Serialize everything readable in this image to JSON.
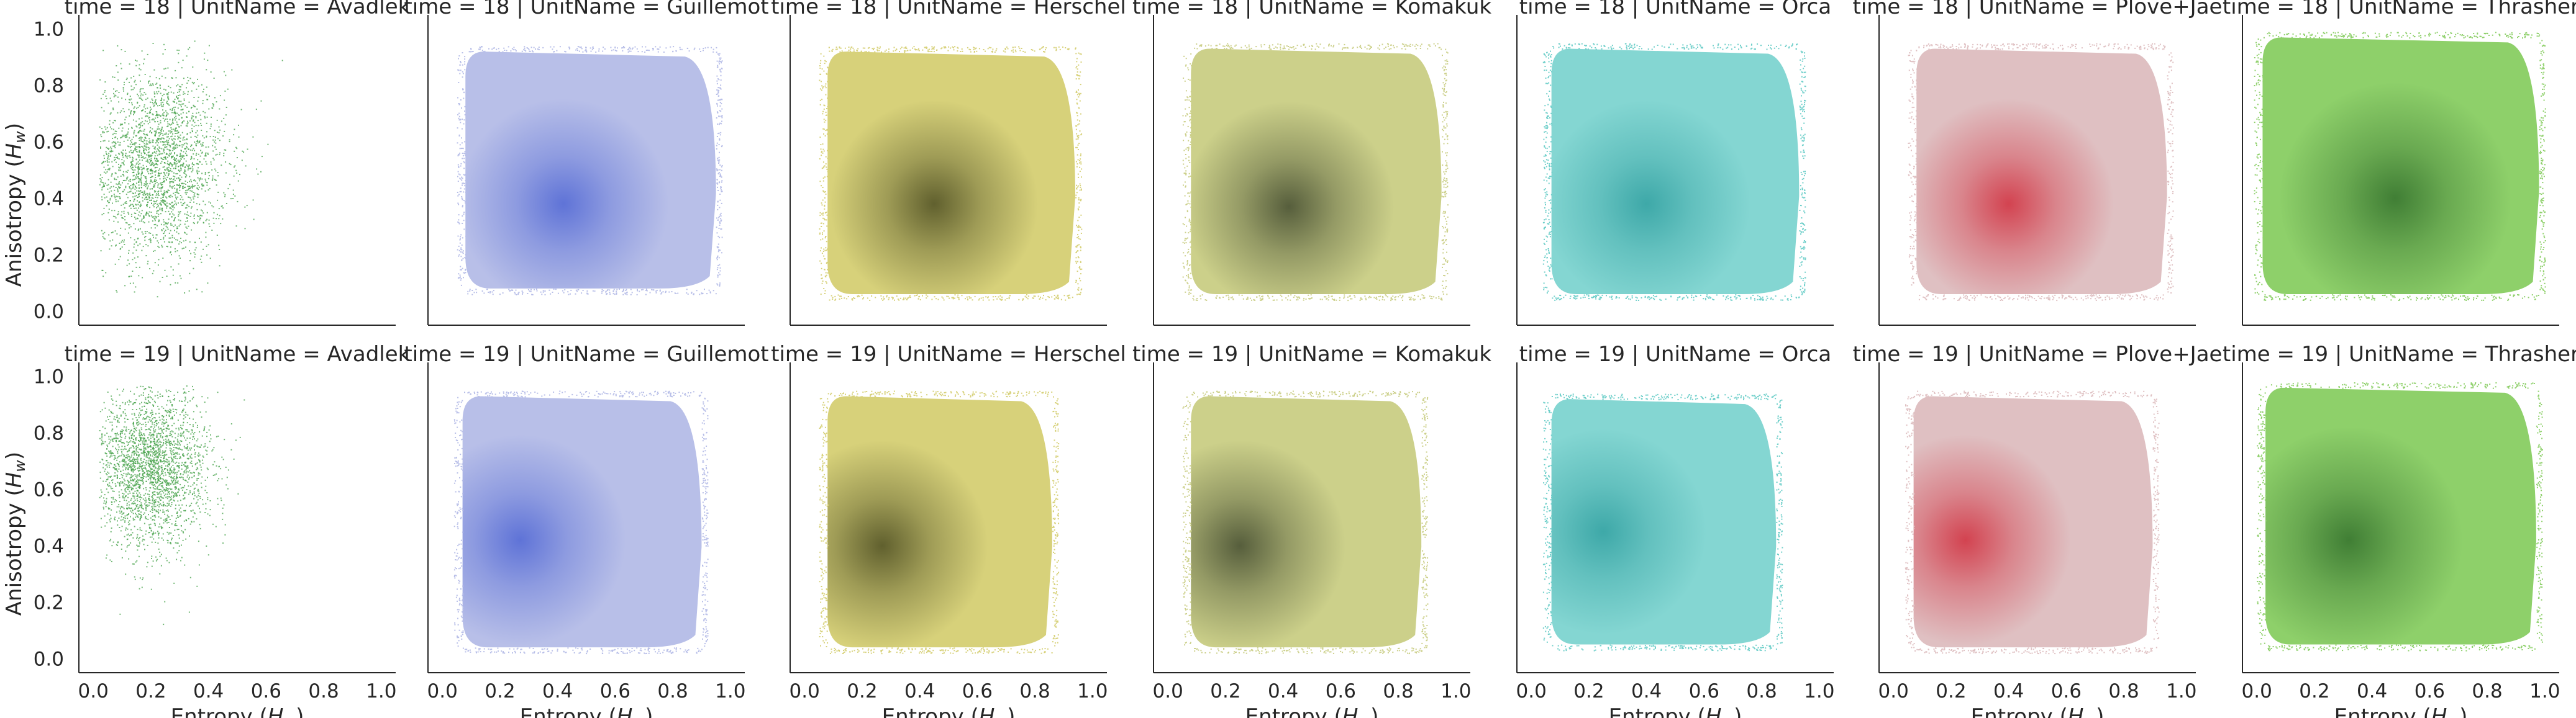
{
  "figure": {
    "x_label_text": "Entropy (",
    "x_label_sym": "H",
    "x_label_sub": "w",
    "x_label_close": ")",
    "y_label_text": "Anisotropy (",
    "y_label_sym": "H",
    "y_label_sub": "w",
    "y_label_close": ")"
  },
  "chart_data": [
    {
      "type": "scatter",
      "title": "time = 18 | UnitName = Avadlek",
      "row": 0,
      "col": 0,
      "color": "#43a047",
      "center": [
        0.22,
        0.52
      ],
      "spread": [
        0.12,
        0.17
      ],
      "density": "sparse",
      "xlim": [
        -0.05,
        1.05
      ],
      "ylim": [
        -0.05,
        1.05
      ],
      "xticks": [
        0.0,
        0.2,
        0.4,
        0.6,
        0.8,
        1.0
      ],
      "yticks": [
        0.0,
        0.2,
        0.4,
        0.6,
        0.8,
        1.0
      ],
      "xtick_labels": [
        "0.0",
        "0.2",
        "0.4",
        "0.6",
        "0.8",
        "1.0"
      ],
      "ytick_labels": [
        "0.0",
        "0.2",
        "0.4",
        "0.6",
        "0.8",
        "1.0"
      ]
    },
    {
      "type": "scatter",
      "title": "time = 18 | UnitName = Guillemot",
      "row": 0,
      "col": 1,
      "color": "#5a6fd6",
      "light_color": "#b8bfe8",
      "center": [
        0.42,
        0.38
      ],
      "spread": [
        0.12,
        0.11
      ],
      "density": "dense",
      "extent": {
        "x": [
          0.08,
          0.95
        ],
        "y": [
          0.08,
          0.92
        ]
      },
      "xlim": [
        -0.05,
        1.05
      ],
      "ylim": [
        -0.05,
        1.05
      ],
      "xticks": [
        0.0,
        0.2,
        0.4,
        0.6,
        0.8,
        1.0
      ],
      "xtick_labels": [
        "0.0",
        "0.2",
        "0.4",
        "0.6",
        "0.8",
        "1.0"
      ]
    },
    {
      "type": "scatter",
      "title": "time = 18 | UnitName = Herschel",
      "row": 0,
      "col": 2,
      "color": "#5a5a2a",
      "light_color": "#d7d17a",
      "center": [
        0.45,
        0.38
      ],
      "spread": [
        0.12,
        0.11
      ],
      "density": "dense",
      "extent": {
        "x": [
          0.08,
          0.94
        ],
        "y": [
          0.06,
          0.92
        ]
      },
      "xlim": [
        -0.05,
        1.05
      ],
      "ylim": [
        -0.05,
        1.05
      ],
      "xticks": [
        0.0,
        0.2,
        0.4,
        0.6,
        0.8,
        1.0
      ],
      "xtick_labels": [
        "0.0",
        "0.2",
        "0.4",
        "0.6",
        "0.8",
        "1.0"
      ]
    },
    {
      "type": "scatter",
      "title": "time = 18 | UnitName = Komakuk",
      "row": 0,
      "col": 3,
      "color": "#505838",
      "light_color": "#ccd08a",
      "center": [
        0.42,
        0.37
      ],
      "spread": [
        0.12,
        0.11
      ],
      "density": "dense",
      "extent": {
        "x": [
          0.08,
          0.95
        ],
        "y": [
          0.06,
          0.93
        ]
      },
      "xlim": [
        -0.05,
        1.05
      ],
      "ylim": [
        -0.05,
        1.05
      ],
      "xticks": [
        0.0,
        0.2,
        0.4,
        0.6,
        0.8,
        1.0
      ],
      "xtick_labels": [
        "0.0",
        "0.2",
        "0.4",
        "0.6",
        "0.8",
        "1.0"
      ]
    },
    {
      "type": "scatter",
      "title": "time = 18 | UnitName = Orca",
      "row": 0,
      "col": 4,
      "color": "#3aa6a6",
      "light_color": "#6fcfca",
      "center": [
        0.4,
        0.38
      ],
      "spread": [
        0.13,
        0.12
      ],
      "density": "medium",
      "extent": {
        "x": [
          0.07,
          0.93
        ],
        "y": [
          0.06,
          0.93
        ]
      },
      "xlim": [
        -0.05,
        1.05
      ],
      "ylim": [
        -0.05,
        1.05
      ],
      "xticks": [
        0.0,
        0.2,
        0.4,
        0.6,
        0.8,
        1.0
      ],
      "xtick_labels": [
        "0.0",
        "0.2",
        "0.4",
        "0.6",
        "0.8",
        "1.0"
      ]
    },
    {
      "type": "scatter",
      "title": "time = 18 | UnitName = Plove+Jae",
      "row": 0,
      "col": 5,
      "color": "#d23c4a",
      "light_color": "#dfc0c2",
      "center": [
        0.4,
        0.38
      ],
      "spread": [
        0.12,
        0.11
      ],
      "density": "dense",
      "extent": {
        "x": [
          0.08,
          0.95
        ],
        "y": [
          0.06,
          0.93
        ]
      },
      "xlim": [
        -0.05,
        1.05
      ],
      "ylim": [
        -0.05,
        1.05
      ],
      "xticks": [
        0.0,
        0.2,
        0.4,
        0.6,
        0.8,
        1.0
      ],
      "xtick_labels": [
        "0.0",
        "0.2",
        "0.4",
        "0.6",
        "0.8",
        "1.0"
      ]
    },
    {
      "type": "scatter",
      "title": "time = 18 | UnitName = Thrasher",
      "row": 0,
      "col": 6,
      "color": "#3c7a32",
      "light_color": "#8ed06a",
      "center": [
        0.48,
        0.4
      ],
      "spread": [
        0.12,
        0.12
      ],
      "density": "dense",
      "extent": {
        "x": [
          0.02,
          0.98
        ],
        "y": [
          0.06,
          0.97
        ]
      },
      "xlim": [
        -0.05,
        1.05
      ],
      "ylim": [
        -0.05,
        1.05
      ],
      "xticks": [
        0.0,
        0.2,
        0.4,
        0.6,
        0.8,
        1.0
      ],
      "xtick_labels": [
        "0.0",
        "0.2",
        "0.4",
        "0.6",
        "0.8",
        "1.0"
      ]
    },
    {
      "type": "scatter",
      "title": "time = 19 | UnitName = Avadlek",
      "row": 1,
      "col": 0,
      "color": "#43a047",
      "center": [
        0.2,
        0.68
      ],
      "spread": [
        0.1,
        0.14
      ],
      "density": "sparse",
      "xlim": [
        -0.05,
        1.05
      ],
      "ylim": [
        -0.05,
        1.05
      ],
      "xticks": [
        0.0,
        0.2,
        0.4,
        0.6,
        0.8,
        1.0
      ],
      "yticks": [
        0.0,
        0.2,
        0.4,
        0.6,
        0.8,
        1.0
      ],
      "xtick_labels": [
        "0.0",
        "0.2",
        "0.4",
        "0.6",
        "0.8",
        "1.0"
      ],
      "ytick_labels": [
        "0.0",
        "0.2",
        "0.4",
        "0.6",
        "0.8",
        "1.0"
      ],
      "xlabel": "Entropy (H_w)",
      "ylabel": "Anisotropy (H_w)"
    },
    {
      "type": "scatter",
      "title": "time = 19 | UnitName = Guillemot",
      "row": 1,
      "col": 1,
      "color": "#5a6fd6",
      "light_color": "#b8bfe8",
      "center": [
        0.27,
        0.42
      ],
      "spread": [
        0.08,
        0.13
      ],
      "density": "dense",
      "extent": {
        "x": [
          0.07,
          0.9
        ],
        "y": [
          0.04,
          0.93
        ]
      },
      "xlim": [
        -0.05,
        1.05
      ],
      "ylim": [
        -0.05,
        1.05
      ],
      "xticks": [
        0.0,
        0.2,
        0.4,
        0.6,
        0.8,
        1.0
      ],
      "xtick_labels": [
        "0.0",
        "0.2",
        "0.4",
        "0.6",
        "0.8",
        "1.0"
      ],
      "xlabel": "Entropy (H_w)"
    },
    {
      "type": "scatter",
      "title": "time = 19 | UnitName = Herschel",
      "row": 1,
      "col": 2,
      "color": "#5a5a2a",
      "light_color": "#d7d17a",
      "center": [
        0.27,
        0.4
      ],
      "spread": [
        0.08,
        0.12
      ],
      "density": "dense",
      "extent": {
        "x": [
          0.08,
          0.86
        ],
        "y": [
          0.04,
          0.93
        ]
      },
      "xlim": [
        -0.05,
        1.05
      ],
      "ylim": [
        -0.05,
        1.05
      ],
      "xticks": [
        0.0,
        0.2,
        0.4,
        0.6,
        0.8,
        1.0
      ],
      "xtick_labels": [
        "0.0",
        "0.2",
        "0.4",
        "0.6",
        "0.8",
        "1.0"
      ],
      "xlabel": "Entropy (H_w)"
    },
    {
      "type": "scatter",
      "title": "time = 19 | UnitName = Komakuk",
      "row": 1,
      "col": 3,
      "color": "#505838",
      "light_color": "#ccd08a",
      "center": [
        0.25,
        0.4
      ],
      "spread": [
        0.08,
        0.12
      ],
      "density": "dense",
      "extent": {
        "x": [
          0.08,
          0.88
        ],
        "y": [
          0.04,
          0.93
        ]
      },
      "xlim": [
        -0.05,
        1.05
      ],
      "ylim": [
        -0.05,
        1.05
      ],
      "xticks": [
        0.0,
        0.2,
        0.4,
        0.6,
        0.8,
        1.0
      ],
      "xtick_labels": [
        "0.0",
        "0.2",
        "0.4",
        "0.6",
        "0.8",
        "1.0"
      ],
      "xlabel": "Entropy (H_w)"
    },
    {
      "type": "scatter",
      "title": "time = 19 | UnitName = Orca",
      "row": 1,
      "col": 4,
      "color": "#3aa6a6",
      "light_color": "#6fcfca",
      "center": [
        0.25,
        0.45
      ],
      "spread": [
        0.09,
        0.14
      ],
      "density": "medium",
      "extent": {
        "x": [
          0.07,
          0.85
        ],
        "y": [
          0.05,
          0.92
        ]
      },
      "xlim": [
        -0.05,
        1.05
      ],
      "ylim": [
        -0.05,
        1.05
      ],
      "xticks": [
        0.0,
        0.2,
        0.4,
        0.6,
        0.8,
        1.0
      ],
      "xtick_labels": [
        "0.0",
        "0.2",
        "0.4",
        "0.6",
        "0.8",
        "1.0"
      ],
      "xlabel": "Entropy (H_w)"
    },
    {
      "type": "scatter",
      "title": "time = 19 | UnitName = Plove+Jae",
      "row": 1,
      "col": 5,
      "color": "#d23c4a",
      "light_color": "#dfc0c2",
      "center": [
        0.25,
        0.42
      ],
      "spread": [
        0.08,
        0.12
      ],
      "density": "dense",
      "extent": {
        "x": [
          0.07,
          0.9
        ],
        "y": [
          0.04,
          0.93
        ]
      },
      "xlim": [
        -0.05,
        1.05
      ],
      "ylim": [
        -0.05,
        1.05
      ],
      "xticks": [
        0.0,
        0.2,
        0.4,
        0.6,
        0.8,
        1.0
      ],
      "xtick_labels": [
        "0.0",
        "0.2",
        "0.4",
        "0.6",
        "0.8",
        "1.0"
      ],
      "xlabel": "Entropy (H_w)"
    },
    {
      "type": "scatter",
      "title": "time = 19 | UnitName = Thrasher",
      "row": 1,
      "col": 6,
      "color": "#3c7a32",
      "light_color": "#8ed06a",
      "center": [
        0.32,
        0.42
      ],
      "spread": [
        0.1,
        0.13
      ],
      "density": "dense",
      "extent": {
        "x": [
          0.03,
          0.97
        ],
        "y": [
          0.05,
          0.96
        ]
      },
      "xlim": [
        -0.05,
        1.05
      ],
      "ylim": [
        -0.05,
        1.05
      ],
      "xticks": [
        0.0,
        0.2,
        0.4,
        0.6,
        0.8,
        1.0
      ],
      "xtick_labels": [
        "0.0",
        "0.2",
        "0.4",
        "0.6",
        "0.8",
        "1.0"
      ],
      "xlabel": "Entropy (H_w)"
    }
  ]
}
